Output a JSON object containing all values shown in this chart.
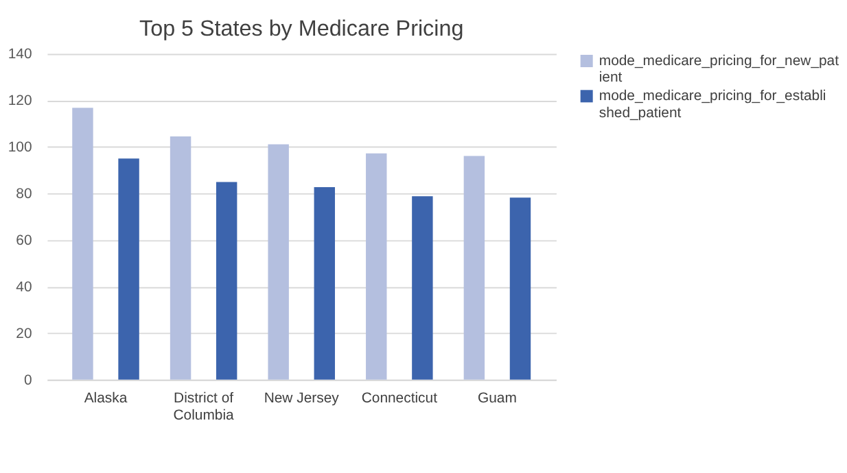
{
  "chart_data": {
    "type": "bar",
    "title": "Top 5 States by Medicare Pricing",
    "categories": [
      "Alaska",
      "District of Columbia",
      "New Jersey",
      "Connecticut",
      "Guam"
    ],
    "series": [
      {
        "name": "mode_medicare_pricing_for_new_patient",
        "color": "#b4bfdf",
        "values": [
          116.8,
          104.5,
          101.1,
          97.2,
          96.1
        ]
      },
      {
        "name": "mode_medicare_pricing_for_established_patient",
        "color": "#3c64ad",
        "values": [
          95.0,
          84.9,
          82.7,
          78.8,
          78.2
        ]
      }
    ],
    "ylim": [
      0,
      140
    ],
    "yticks": [
      0,
      20,
      40,
      60,
      80,
      100,
      120,
      140
    ],
    "grid": "y",
    "legend": "right"
  }
}
